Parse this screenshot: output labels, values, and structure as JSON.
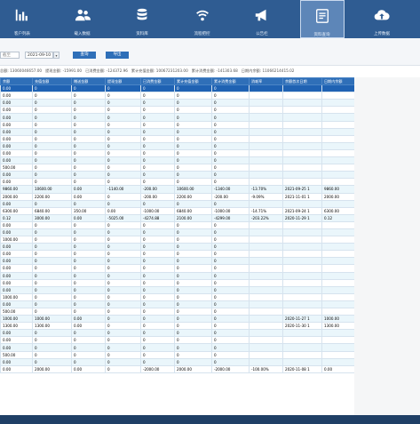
{
  "nav": [
    {
      "label": "客户列表",
      "icon": "bar-chart-icon"
    },
    {
      "label": "载入数据",
      "icon": "users-icon"
    },
    {
      "label": "资料库",
      "icon": "database-icon"
    },
    {
      "label": "流程把控",
      "icon": "signal-icon"
    },
    {
      "label": "公告栏",
      "icon": "megaphone-icon"
    },
    {
      "label": "资料查询",
      "icon": "document-icon",
      "active": true
    },
    {
      "label": "上传数据",
      "icon": "cloud-upload-icon"
    }
  ],
  "toolbar": {
    "date_from": "截至",
    "date_to": "2021-09-10",
    "query_label": "查询",
    "export_label": "导出"
  },
  "summary": [
    "总额: 13060046657.00",
    "提现金额: -15991.00",
    "已消费金额: -124372.96",
    "累计充值金额: 10067231203.00",
    "累计消费金额: -141303.68",
    "日期内余额: 11066214415.02"
  ],
  "table": {
    "columns": [
      "余额",
      "充值金额",
      "赠送金额",
      "提现金额",
      "已消费金额",
      "累计充值金额",
      "累计消费金额",
      "消耗率",
      "余额首次日期",
      "日期内余额"
    ],
    "rows": [
      [
        "0.00",
        "0",
        "0",
        "0",
        "0",
        "0",
        "0",
        "",
        "",
        ""
      ],
      [
        "0.00",
        "0",
        "0",
        "0",
        "0",
        "0",
        "0",
        "",
        "",
        ""
      ],
      [
        "0.00",
        "0",
        "0",
        "0",
        "0",
        "0",
        "0",
        "",
        "",
        ""
      ],
      [
        "0.00",
        "0",
        "0",
        "0",
        "0",
        "0",
        "0",
        "",
        "",
        ""
      ],
      [
        "0.00",
        "0",
        "0",
        "0",
        "0",
        "0",
        "0",
        "",
        "",
        ""
      ],
      [
        "0.00",
        "0",
        "0",
        "0",
        "0",
        "0",
        "0",
        "",
        "",
        ""
      ],
      [
        "0.00",
        "0",
        "0",
        "0",
        "0",
        "0",
        "0",
        "",
        "",
        ""
      ],
      [
        "0.00",
        "0",
        "0",
        "0",
        "0",
        "0",
        "0",
        "",
        "",
        ""
      ],
      [
        "0.00",
        "0",
        "0",
        "0",
        "0",
        "0",
        "0",
        "",
        "",
        ""
      ],
      [
        "0.00",
        "0",
        "0",
        "0",
        "0",
        "0",
        "0",
        "",
        "",
        ""
      ],
      [
        "0.00",
        "0",
        "0",
        "0",
        "0",
        "0",
        "0",
        "",
        "",
        ""
      ],
      [
        "500.00",
        "0",
        "0",
        "0",
        "0",
        "0",
        "0",
        "",
        "",
        ""
      ],
      [
        "0.00",
        "0",
        "0",
        "0",
        "0",
        "0",
        "0",
        "",
        "",
        ""
      ],
      [
        "0.00",
        "0",
        "0",
        "0",
        "0",
        "0",
        "0",
        "",
        "",
        ""
      ],
      [
        "9860.00",
        "10600.00",
        "0.00",
        "-1140.00",
        "-200.00",
        "10600.00",
        "-1340.00",
        "-13.70%",
        "2021-09-25 1",
        "9860.00"
      ],
      [
        "2000.00",
        "2200.00",
        "0.00",
        "0",
        "-200.00",
        "2200.00",
        "-200.00",
        "-9.09%",
        "2021-11-01 1",
        "2000.00"
      ],
      [
        "0.00",
        "0",
        "0",
        "0",
        "0",
        "0",
        "0",
        "",
        "",
        ""
      ],
      [
        "6300.00",
        "6840.00",
        "350.00",
        "0.00",
        "-1000.00",
        "6840.00",
        "-1000.00",
        "-14.71%",
        "2021-09-24 1",
        "6300.00"
      ],
      [
        "0.12",
        "3000.00",
        "0.00",
        "-5025.00",
        "-4274.88",
        "2100.00",
        "-4299.00",
        "-203.22%",
        "2020-11-29 1",
        "0.12"
      ],
      [
        "0.00",
        "0",
        "0",
        "0",
        "0",
        "0",
        "0",
        "",
        "",
        ""
      ],
      [
        "0.00",
        "0",
        "0",
        "0",
        "0",
        "0",
        "0",
        "",
        "",
        ""
      ],
      [
        "1000.00",
        "0",
        "0",
        "0",
        "0",
        "0",
        "0",
        "",
        "",
        ""
      ],
      [
        "0.00",
        "0",
        "0",
        "0",
        "0",
        "0",
        "0",
        "",
        "",
        ""
      ],
      [
        "0.00",
        "0",
        "0",
        "0",
        "0",
        "0",
        "0",
        "",
        "",
        ""
      ],
      [
        "0.00",
        "0",
        "0",
        "0",
        "0",
        "0",
        "0",
        "",
        "",
        ""
      ],
      [
        "0.00",
        "0",
        "0",
        "0",
        "0",
        "0",
        "0",
        "",
        "",
        ""
      ],
      [
        "0.00",
        "0",
        "0",
        "0",
        "0",
        "0",
        "0",
        "",
        "",
        ""
      ],
      [
        "0.00",
        "0",
        "0",
        "0",
        "0",
        "0",
        "0",
        "",
        "",
        ""
      ],
      [
        "0.00",
        "0",
        "0",
        "0",
        "0",
        "0",
        "0",
        "",
        "",
        ""
      ],
      [
        "1000.00",
        "0",
        "0",
        "0",
        "0",
        "0",
        "0",
        "",
        "",
        ""
      ],
      [
        "0.00",
        "0",
        "0",
        "0",
        "0",
        "0",
        "0",
        "",
        "",
        ""
      ],
      [
        "500.00",
        "0",
        "0",
        "0",
        "0",
        "0",
        "0",
        "",
        "",
        ""
      ],
      [
        "1000.00",
        "1000.00",
        "0.00",
        "0",
        "0",
        "0",
        "0",
        "",
        "2020-11-27 1",
        "1000.00"
      ],
      [
        "1300.00",
        "1300.00",
        "0.00",
        "0",
        "0",
        "0",
        "0",
        "",
        "2020-11-30 1",
        "1300.00"
      ],
      [
        "0.00",
        "0",
        "0",
        "0",
        "0",
        "0",
        "0",
        "",
        "",
        ""
      ],
      [
        "0.00",
        "0",
        "0",
        "0",
        "0",
        "0",
        "0",
        "",
        "",
        ""
      ],
      [
        "0.00",
        "0",
        "0",
        "0",
        "0",
        "0",
        "0",
        "",
        "",
        ""
      ],
      [
        "500.00",
        "0",
        "0",
        "0",
        "0",
        "0",
        "0",
        "",
        "",
        ""
      ],
      [
        "0.00",
        "0",
        "0",
        "0",
        "0",
        "0",
        "0",
        "",
        "",
        ""
      ],
      [
        "0.00",
        "2000.00",
        "0.00",
        "0",
        "-2000.00",
        "2000.00",
        "-2000.00",
        "-100.00%",
        "2020-11-08 1",
        "0.00"
      ]
    ]
  },
  "colors": {
    "nav_bg": "#2f5c92",
    "header_bg": "#2f6fb8",
    "selected_row": "#1f62b3",
    "alt_row": "#eaf6fb"
  }
}
